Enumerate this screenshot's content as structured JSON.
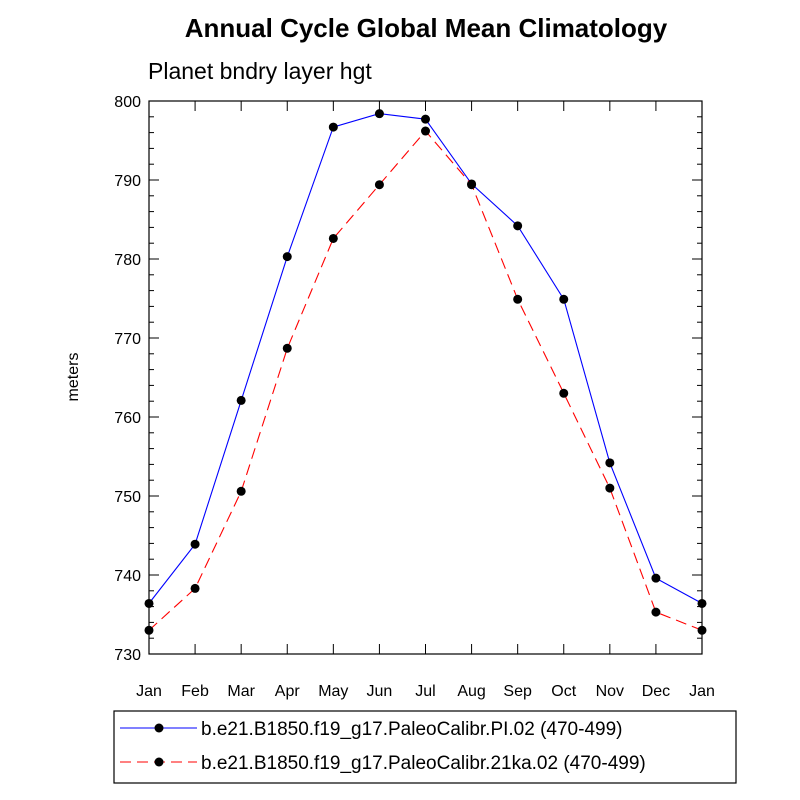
{
  "chart_data": {
    "type": "line",
    "title": "Annual Cycle Global Mean Climatology",
    "subtitle": "Planet bndry layer hgt",
    "xlabel": "",
    "ylabel": "meters",
    "categories": [
      "Jan",
      "Feb",
      "Mar",
      "Apr",
      "May",
      "Jun",
      "Jul",
      "Aug",
      "Sep",
      "Oct",
      "Nov",
      "Dec",
      "Jan"
    ],
    "ylim": [
      730,
      800
    ],
    "yticks": [
      730,
      740,
      750,
      760,
      770,
      780,
      790,
      800
    ],
    "grid": false,
    "legend_position": "bottom",
    "series": [
      {
        "name": "b.e21.B1850.f19_g17.PaleoCalibr.PI.02 (470-499)",
        "color": "#0000ff",
        "dash": "solid",
        "marker": "circle",
        "values": [
          736.4,
          743.9,
          762.1,
          780.3,
          796.7,
          798.4,
          797.7,
          789.5,
          784.2,
          774.9,
          754.2,
          739.6,
          736.4
        ]
      },
      {
        "name": "b.e21.B1850.f19_g17.PaleoCalibr.21ka.02 (470-499)",
        "color": "#ff0000",
        "dash": "dashed",
        "marker": "circle",
        "values": [
          733.0,
          738.3,
          750.6,
          768.7,
          782.6,
          789.4,
          796.2,
          789.4,
          774.9,
          763.0,
          751.0,
          735.3,
          733.0
        ]
      }
    ]
  }
}
